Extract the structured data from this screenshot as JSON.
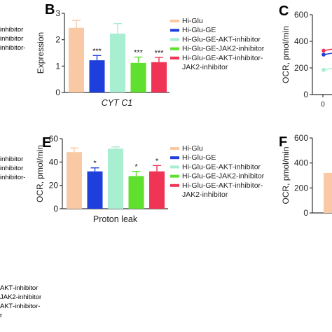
{
  "chart_data": [
    {
      "panel": "B",
      "type": "bar",
      "categories": [
        "Hi-Glu",
        "Hi-Glu-GE",
        "Hi-Glu-GE-AKT-inhibitor",
        "Hi-Glu-GE-JAK2-inhibitor",
        "Hi-Glu-GE-AKT-inhibitor-JAK2-inhibitor"
      ],
      "values": [
        2.45,
        1.22,
        2.23,
        1.12,
        1.15
      ],
      "errors": [
        0.28,
        0.18,
        0.38,
        0.22,
        0.18
      ],
      "significance": [
        "",
        "***",
        "",
        "***",
        "***"
      ],
      "xlabel": "CYT C1",
      "ylabel": "Expression",
      "ylim": [
        0,
        3
      ],
      "yticks": [
        "0",
        "1",
        "2",
        "3"
      ],
      "legend": [
        "Hi-Glu",
        "Hi-Glu-GE",
        "Hi-Glu-GE-AKT-inhibitor",
        "Hi-Glu-GE-JAK2-inhibitor",
        "Hi-Glu-GE-AKT-inhibitor-",
        "JAK2-inhibitor"
      ]
    },
    {
      "panel": "E",
      "type": "bar",
      "categories": [
        "Hi-Glu",
        "Hi-Glu-GE",
        "Hi-Glu-GE-AKT-inhibitor",
        "Hi-Glu-GE-JAK2-inhibitor",
        "Hi-Glu-GE-AKT-inhibitor-JAK2-inhibitor"
      ],
      "values": [
        48.5,
        32,
        51.5,
        28,
        32
      ],
      "errors": [
        3.5,
        3,
        1.5,
        4,
        5
      ],
      "significance": [
        "",
        "*",
        "",
        "*",
        "*"
      ],
      "xlabel": "Proton leak",
      "ylabel": "OCR, pmol/min",
      "ylim": [
        0,
        60
      ],
      "yticks": [
        "0",
        "20",
        "40",
        "60"
      ],
      "legend": [
        "Hi-Glu",
        "Hi-Glu-GE",
        "Hi-Glu-GE-AKT-inhibitor",
        "Hi-Glu-GE-JAK2-inhibitor",
        "Hi-Glu-GE-AKT-inhibitor-",
        "JAK2-inhibitor"
      ]
    },
    {
      "panel": "C",
      "type": "line",
      "ylabel": "OCR, pmol/min",
      "ylim": [
        0,
        600
      ],
      "yticks": [
        "0",
        "200",
        "400",
        "600"
      ],
      "xticks": [
        "0"
      ],
      "series": [
        {
          "values": [
            330
          ]
        },
        {
          "values": [
            300
          ]
        },
        {
          "values": [
            185
          ]
        }
      ]
    },
    {
      "panel": "F",
      "type": "bar",
      "ylabel": "OCR, pmol/min",
      "ylim": [
        0,
        600
      ],
      "yticks": [
        "0",
        "200",
        "400",
        "600"
      ],
      "values": [
        320
      ]
    }
  ],
  "colors": [
    "#f8c9a4",
    "#1f3fdc",
    "#a8eed0",
    "#5fdf2e",
    "#f03455"
  ],
  "left_edge_labels": [
    "inhibitor",
    "inhibitor",
    "inhibitor-",
    "inhibitor",
    "inhibitor",
    "inhibitor-",
    "AKT-inhibitor",
    "JAK2-inhibitor",
    "AKT-inhibitor-",
    "r"
  ]
}
